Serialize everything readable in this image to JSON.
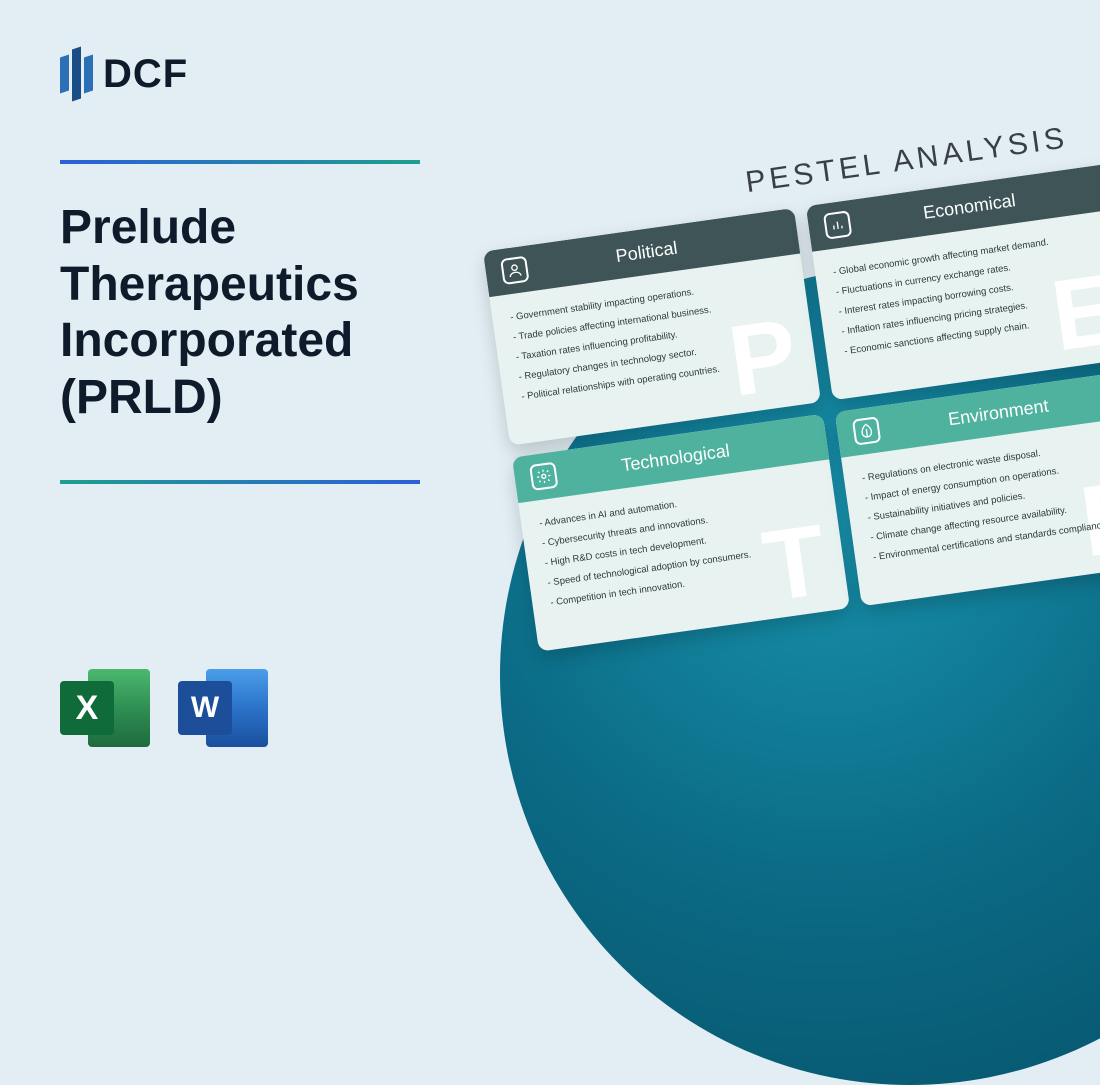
{
  "logo_text": "DCF",
  "title": "Prelude Therapeutics Incorporated (PRLD)",
  "colors": {
    "page_bg": "#e2eef4",
    "circle_gradient_from": "#1893ad",
    "circle_gradient_to": "#064f66",
    "divider_gradient_from": "#2b5fd9",
    "divider_gradient_to": "#1f9e8e",
    "card_bg": "#e8f2f1",
    "header_dark": "#3e5457",
    "header_teal": "#4fb29f",
    "excel_front": "#0f6b3a",
    "word_front": "#1d4e9a"
  },
  "app_icons": {
    "excel_letter": "X",
    "word_letter": "W"
  },
  "pestel_title": "PESTEL ANALYSIS",
  "cards": [
    {
      "title": "Political",
      "watermark": "P",
      "header_class": "h-dark",
      "icon": "person",
      "items": [
        "Government stability impacting operations.",
        "Trade policies affecting international business.",
        "Taxation rates influencing profitability.",
        "Regulatory changes in technology sector.",
        "Political relationships with operating countries."
      ]
    },
    {
      "title": "Economical",
      "watermark": "E",
      "header_class": "h-dark",
      "icon": "chart",
      "items": [
        "Global economic growth affecting market demand.",
        "Fluctuations in currency exchange rates.",
        "Interest rates impacting borrowing costs.",
        "Inflation rates influencing pricing strategies.",
        "Economic sanctions affecting supply chain."
      ]
    },
    {
      "title": "Technological",
      "watermark": "T",
      "header_class": "h-teal",
      "icon": "gear",
      "items": [
        "Advances in AI and automation.",
        "Cybersecurity threats and innovations.",
        "High R&D costs in tech development.",
        "Speed of technological adoption by consumers.",
        "Competition in tech innovation."
      ]
    },
    {
      "title": "Environment",
      "watermark": "E",
      "header_class": "h-teal",
      "icon": "leaf",
      "items": [
        "Regulations on electronic waste disposal.",
        "Impact of energy consumption on operations.",
        "Sustainability initiatives and policies.",
        "Climate change affecting resource availability.",
        "Environmental certifications and standards compliance."
      ]
    }
  ]
}
